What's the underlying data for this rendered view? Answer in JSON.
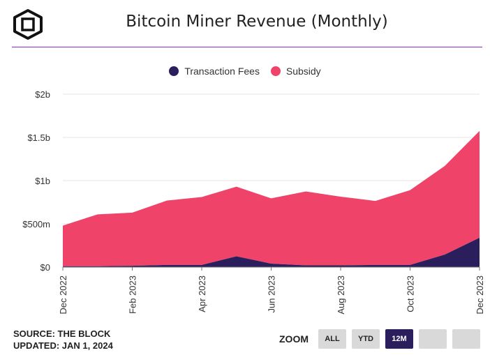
{
  "header": {
    "title": "Bitcoin Miner Revenue (Monthly)",
    "logo_icon": "cube-logo-icon"
  },
  "colors": {
    "fees": "#2b1e5c",
    "subsidy": "#f0436a",
    "accent": "#8a2be2"
  },
  "footer": {
    "source": "SOURCE: THE BLOCK",
    "updated": "UPDATED: JAN 1, 2024"
  },
  "zoom": {
    "label": "ZOOM",
    "buttons": [
      "ALL",
      "YTD",
      "12M",
      "",
      ""
    ],
    "active": "12M"
  },
  "chart_data": {
    "type": "area",
    "stacked": true,
    "title": "Bitcoin Miner Revenue (Monthly)",
    "xlabel": "",
    "ylabel": "",
    "x": [
      "Dec 2022",
      "Jan 2023",
      "Feb 2023",
      "Mar 2023",
      "Apr 2023",
      "May 2023",
      "Jun 2023",
      "Jul 2023",
      "Aug 2023",
      "Sep 2023",
      "Oct 2023",
      "Nov 2023",
      "Dec 2023"
    ],
    "x_tick_labels": [
      "Dec 2022",
      "Feb 2023",
      "Apr 2023",
      "Jun 2023",
      "Aug 2023",
      "Oct 2023",
      "Dec 2023"
    ],
    "series": [
      {
        "name": "Transaction Fees",
        "values": [
          10,
          10,
          15,
          25,
          25,
          125,
          40,
          20,
          20,
          25,
          25,
          145,
          340
        ]
      },
      {
        "name": "Subsidy",
        "values": [
          470,
          600,
          615,
          745,
          785,
          805,
          755,
          855,
          795,
          740,
          865,
          1025,
          1235
        ]
      }
    ],
    "ylim": [
      0,
      2000
    ],
    "y_ticks": [
      {
        "value": 0,
        "label": "$0"
      },
      {
        "value": 500,
        "label": "$500m"
      },
      {
        "value": 1000,
        "label": "$1b"
      },
      {
        "value": 1500,
        "label": "$1.5b"
      },
      {
        "value": 2000,
        "label": "$2b"
      }
    ],
    "legend_position": "top-center",
    "grid": true
  }
}
